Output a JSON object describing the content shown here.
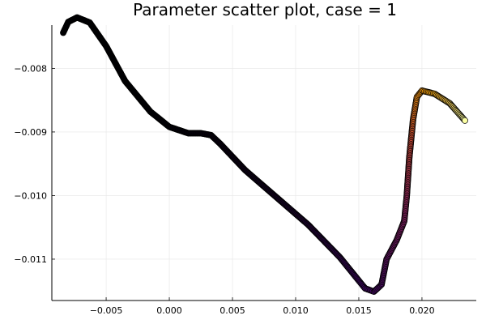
{
  "chart_data": {
    "type": "scatter",
    "title": "Parameter scatter plot, case = 1",
    "xlabel": "",
    "ylabel": "",
    "xlim": [
      -0.0093,
      0.0243
    ],
    "ylim": [
      -0.01165,
      -0.00732
    ],
    "x_ticks": [
      {
        "value": -0.005,
        "label": "−0.005"
      },
      {
        "value": 0.0,
        "label": "0.000"
      },
      {
        "value": 0.005,
        "label": "0.005"
      },
      {
        "value": 0.01,
        "label": "0.010"
      },
      {
        "value": 0.015,
        "label": "0.015"
      },
      {
        "value": 0.02,
        "label": "0.020"
      }
    ],
    "y_ticks": [
      {
        "value": -0.008,
        "label": "−0.008"
      },
      {
        "value": -0.009,
        "label": "−0.009"
      },
      {
        "value": -0.01,
        "label": "−0.010"
      },
      {
        "value": -0.011,
        "label": "−0.011"
      }
    ],
    "grid": true,
    "legend": "none",
    "marker_stroke": "#000000",
    "colormap": [
      "#000004",
      "#420a68",
      "#932667",
      "#dd513a",
      "#fca50a",
      "#fcffa4"
    ],
    "path": [
      {
        "x": -0.0084,
        "y": -0.00744
      },
      {
        "x": -0.008,
        "y": -0.00727
      },
      {
        "x": -0.0073,
        "y": -0.0072
      },
      {
        "x": -0.0063,
        "y": -0.00728
      },
      {
        "x": -0.005,
        "y": -0.00765
      },
      {
        "x": -0.0035,
        "y": -0.0082
      },
      {
        "x": -0.0015,
        "y": -0.00868
      },
      {
        "x": 0.0,
        "y": -0.00892
      },
      {
        "x": 0.0015,
        "y": -0.00902
      },
      {
        "x": 0.0025,
        "y": -0.00902
      },
      {
        "x": 0.0033,
        "y": -0.00905
      },
      {
        "x": 0.004,
        "y": -0.00918
      },
      {
        "x": 0.006,
        "y": -0.0096
      },
      {
        "x": 0.0085,
        "y": -0.01003
      },
      {
        "x": 0.011,
        "y": -0.01046
      },
      {
        "x": 0.0135,
        "y": -0.01097
      },
      {
        "x": 0.0155,
        "y": -0.01146
      },
      {
        "x": 0.0162,
        "y": -0.01151
      },
      {
        "x": 0.0168,
        "y": -0.0114
      },
      {
        "x": 0.0172,
        "y": -0.011
      },
      {
        "x": 0.018,
        "y": -0.0107
      },
      {
        "x": 0.0186,
        "y": -0.0104
      },
      {
        "x": 0.0188,
        "y": -0.01
      },
      {
        "x": 0.019,
        "y": -0.0094
      },
      {
        "x": 0.0193,
        "y": -0.0088
      },
      {
        "x": 0.0196,
        "y": -0.00845
      },
      {
        "x": 0.02,
        "y": -0.00835
      },
      {
        "x": 0.021,
        "y": -0.0084
      },
      {
        "x": 0.0222,
        "y": -0.00855
      },
      {
        "x": 0.0234,
        "y": -0.00882
      }
    ]
  }
}
